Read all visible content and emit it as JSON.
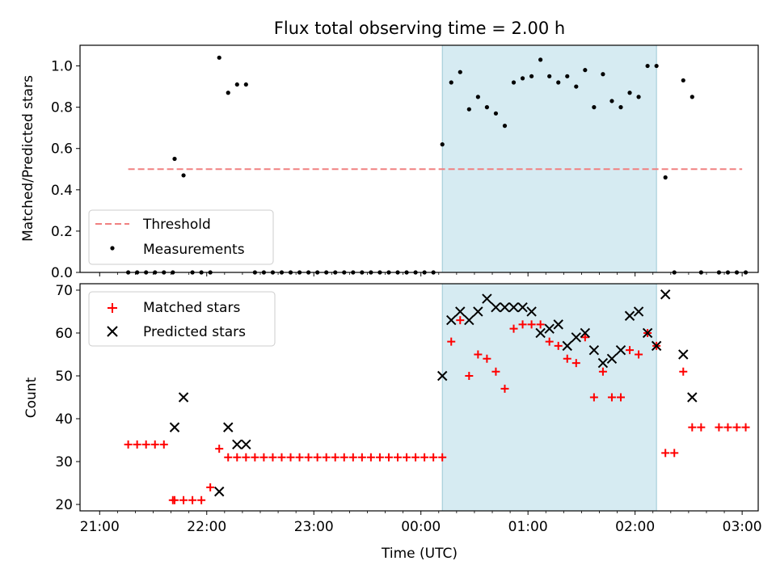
{
  "chart_data": [
    {
      "type": "scatter",
      "title": "Flux total observing time = 2.00 h",
      "xlabel": "",
      "ylabel": "Matched/Predicted stars",
      "ylim": [
        0,
        1.1
      ],
      "yticks": [
        0.0,
        0.2,
        0.4,
        0.6,
        0.8,
        1.0
      ],
      "ytick_labels": [
        "0.0",
        "0.2",
        "0.4",
        "0.6",
        "0.8",
        "1.0"
      ],
      "shaded_interval": [
        "00:12",
        "02:12"
      ],
      "legend_position": "lower-left",
      "series": [
        {
          "name": "Threshold",
          "style": "dashed-line",
          "color": "#f08080",
          "x": [
            "21:16",
            "03:00"
          ],
          "values": [
            0.5,
            0.5
          ]
        },
        {
          "name": "Measurements",
          "style": "dot",
          "color": "#000000",
          "x": [
            "21:16",
            "21:21",
            "21:26",
            "21:31",
            "21:36",
            "21:41",
            "21:42",
            "21:47",
            "21:52",
            "21:57",
            "22:02",
            "22:07",
            "22:12",
            "22:17",
            "22:22",
            "22:27",
            "22:32",
            "22:37",
            "22:42",
            "22:47",
            "22:52",
            "22:57",
            "23:02",
            "23:07",
            "23:12",
            "23:17",
            "23:22",
            "23:27",
            "23:32",
            "23:37",
            "23:42",
            "23:47",
            "23:52",
            "23:57",
            "00:02",
            "00:07",
            "00:12",
            "00:17",
            "00:22",
            "00:27",
            "00:32",
            "00:37",
            "00:42",
            "00:47",
            "00:52",
            "00:57",
            "01:02",
            "01:07",
            "01:12",
            "01:17",
            "01:22",
            "01:27",
            "01:32",
            "01:37",
            "01:42",
            "01:47",
            "01:52",
            "01:57",
            "02:02",
            "02:07",
            "02:12",
            "02:17",
            "02:22",
            "02:27",
            "02:32",
            "02:37",
            "02:47",
            "02:52",
            "02:57",
            "03:02"
          ],
          "values": [
            0,
            0,
            0,
            0,
            0,
            0,
            0.55,
            0.47,
            0,
            0,
            0,
            1.04,
            0.87,
            0.91,
            0.91,
            0,
            0,
            0,
            0,
            0,
            0,
            0,
            0,
            0,
            0,
            0,
            0,
            0,
            0,
            0,
            0,
            0,
            0,
            0,
            0,
            0,
            0.62,
            0.92,
            0.97,
            0.79,
            0.85,
            0.8,
            0.77,
            0.71,
            0.92,
            0.94,
            0.95,
            1.03,
            0.95,
            0.92,
            0.95,
            0.9,
            0.98,
            0.8,
            0.96,
            0.83,
            0.8,
            0.87,
            0.85,
            1.0,
            1.0,
            0.46,
            0,
            0.93,
            0.85,
            0,
            0,
            0,
            0,
            0
          ]
        }
      ]
    },
    {
      "type": "scatter",
      "title": "",
      "xlabel": "Time (UTC)",
      "ylabel": "Count",
      "ylim": [
        18.5,
        71.5
      ],
      "yticks": [
        20,
        30,
        40,
        50,
        60,
        70
      ],
      "ytick_labels": [
        "20",
        "30",
        "40",
        "50",
        "60",
        "70"
      ],
      "xticks": [
        "21:00",
        "22:00",
        "23:00",
        "00:00",
        "01:00",
        "02:00",
        "03:00"
      ],
      "shaded_interval": [
        "00:12",
        "02:12"
      ],
      "legend_position": "upper-left",
      "series": [
        {
          "name": "Matched stars",
          "style": "plus",
          "color": "#ff0000",
          "x": [
            "21:16",
            "21:21",
            "21:26",
            "21:31",
            "21:36",
            "21:41",
            "21:42",
            "21:47",
            "21:52",
            "21:57",
            "22:02",
            "22:07",
            "22:12",
            "22:17",
            "22:22",
            "22:27",
            "22:32",
            "22:37",
            "22:42",
            "22:47",
            "22:52",
            "22:57",
            "23:02",
            "23:07",
            "23:12",
            "23:17",
            "23:22",
            "23:27",
            "23:32",
            "23:37",
            "23:42",
            "23:47",
            "23:52",
            "23:57",
            "00:02",
            "00:07",
            "00:12",
            "00:17",
            "00:22",
            "00:27",
            "00:32",
            "00:37",
            "00:42",
            "00:47",
            "00:52",
            "00:57",
            "01:02",
            "01:07",
            "01:12",
            "01:17",
            "01:22",
            "01:27",
            "01:32",
            "01:37",
            "01:42",
            "01:47",
            "01:52",
            "01:57",
            "02:02",
            "02:07",
            "02:12",
            "02:17",
            "02:22",
            "02:27",
            "02:32",
            "02:37",
            "02:47",
            "02:52",
            "02:57",
            "03:02"
          ],
          "values": [
            34,
            34,
            34,
            34,
            34,
            21,
            21,
            21,
            21,
            21,
            24,
            33,
            31,
            31,
            31,
            31,
            31,
            31,
            31,
            31,
            31,
            31,
            31,
            31,
            31,
            31,
            31,
            31,
            31,
            31,
            31,
            31,
            31,
            31,
            31,
            31,
            31,
            58,
            63,
            50,
            55,
            54,
            51,
            47,
            61,
            62,
            62,
            62,
            58,
            57,
            54,
            53,
            59,
            45,
            51,
            45,
            45,
            56,
            55,
            60,
            57,
            32,
            32,
            51,
            38,
            38,
            38,
            38,
            38,
            38
          ]
        },
        {
          "name": "Predicted stars",
          "style": "x",
          "color": "#000000",
          "x": [
            "21:42",
            "21:47",
            "22:07",
            "22:12",
            "22:17",
            "22:22",
            "00:12",
            "00:17",
            "00:22",
            "00:27",
            "00:32",
            "00:37",
            "00:42",
            "00:47",
            "00:52",
            "00:57",
            "01:02",
            "01:07",
            "01:12",
            "01:17",
            "01:22",
            "01:27",
            "01:32",
            "01:37",
            "01:42",
            "01:47",
            "01:52",
            "01:57",
            "02:02",
            "02:07",
            "02:12",
            "02:17",
            "02:27",
            "02:32"
          ],
          "values": [
            38,
            45,
            23,
            38,
            34,
            34,
            50,
            63,
            65,
            63,
            65,
            68,
            66,
            66,
            66,
            66,
            65,
            60,
            61,
            62,
            57,
            59,
            60,
            56,
            53,
            54,
            56,
            64,
            65,
            60,
            57,
            69,
            55,
            45
          ]
        }
      ]
    }
  ]
}
